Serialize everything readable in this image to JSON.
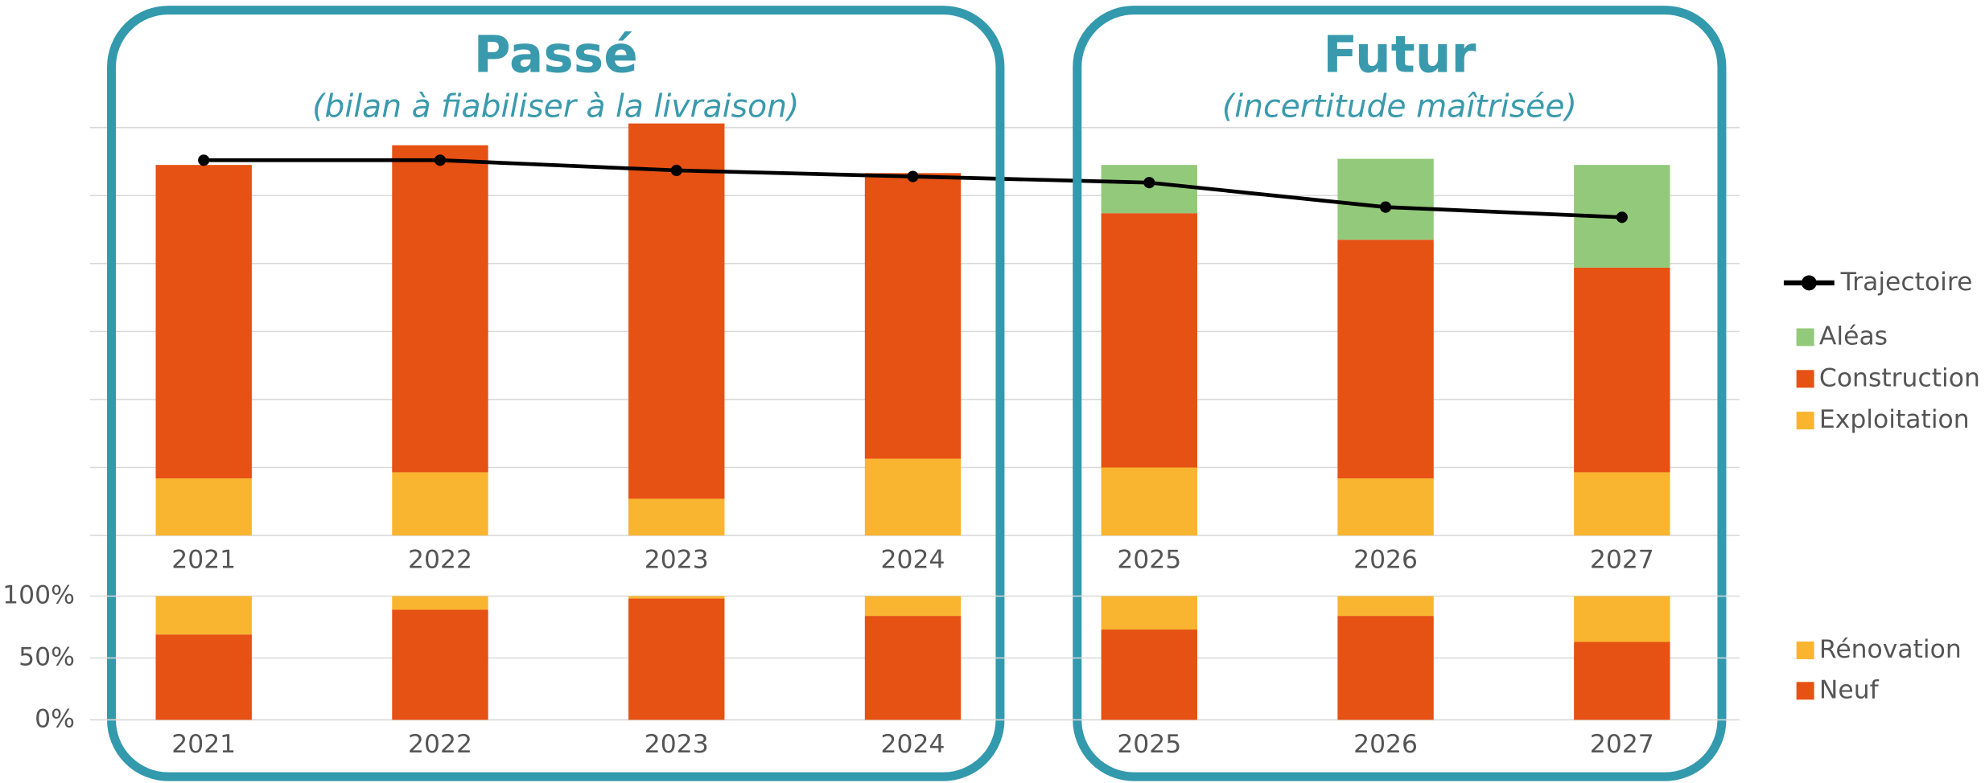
{
  "chart_data": [
    {
      "type": "bar",
      "stacked": true,
      "grid": true,
      "legend": "right",
      "categories": [
        "2021",
        "2022",
        "2023",
        "2024",
        "2025",
        "2026",
        "2027"
      ],
      "ylim": [
        0,
        6
      ],
      "yticks": [
        0,
        1,
        2,
        3,
        4,
        5,
        6
      ],
      "series": [
        {
          "name": "Exploitation",
          "color": "#f9b52f",
          "values": [
            0.84,
            0.93,
            0.54,
            1.13,
            1.0,
            0.84,
            0.93
          ]
        },
        {
          "name": "Construction",
          "color": "#e65114",
          "values": [
            4.61,
            4.81,
            5.52,
            4.2,
            3.74,
            3.51,
            3.01
          ]
        },
        {
          "name": "Aléas",
          "color": "#93c97a",
          "values": [
            0,
            0,
            0,
            0,
            0.71,
            1.19,
            1.51
          ]
        },
        {
          "name": "Trajectoire",
          "type": "line",
          "color": "#000000",
          "values": [
            5.52,
            5.52,
            5.37,
            5.28,
            5.19,
            4.83,
            4.68
          ]
        }
      ],
      "panels": [
        {
          "title": "Passé",
          "subtitle": "(bilan à fiabiliser à la livraison)"
        },
        {
          "title": "Futur",
          "subtitle": "(incertitude maîtrisée)"
        }
      ]
    },
    {
      "type": "bar",
      "stacked": true,
      "grid": true,
      "legend": "right",
      "categories": [
        "2021",
        "2022",
        "2023",
        "2024",
        "2025",
        "2026",
        "2027"
      ],
      "ylim": [
        0,
        100
      ],
      "yticks": [
        {
          "value": 0,
          "label": "0%"
        },
        {
          "value": 50,
          "label": "50%"
        },
        {
          "value": 100,
          "label": "100%"
        }
      ],
      "series": [
        {
          "name": "Neuf",
          "color": "#e65114",
          "values": [
            69,
            89,
            98,
            84,
            73,
            84,
            63
          ]
        },
        {
          "name": "Rénovation",
          "color": "#f9b52f",
          "values": [
            31,
            11,
            2,
            16,
            27,
            16,
            37
          ]
        }
      ]
    }
  ]
}
